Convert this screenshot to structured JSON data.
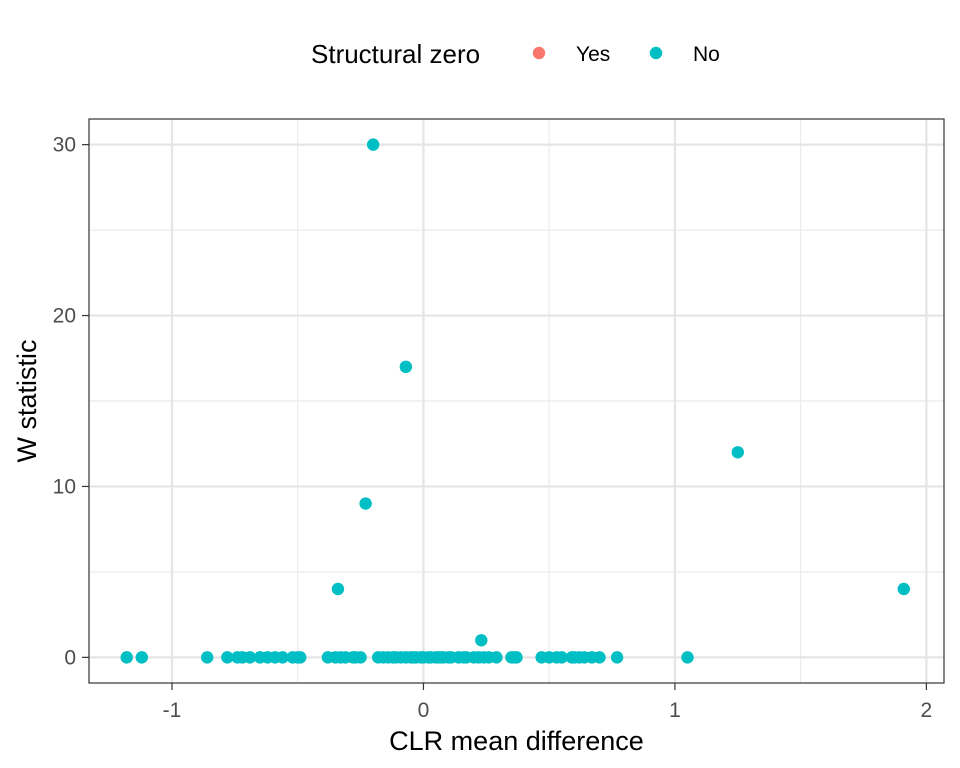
{
  "chart_data": {
    "type": "scatter",
    "xlabel": "CLR mean difference",
    "ylabel": "W statistic",
    "xlim": [
      -1.33,
      2.07
    ],
    "ylim": [
      -1.5,
      31.5
    ],
    "xticks": [
      -1,
      0,
      1,
      2
    ],
    "xtick_labels": [
      "-1",
      "0",
      "1",
      "2"
    ],
    "yticks": [
      0,
      10,
      20,
      30
    ],
    "ytick_labels": [
      "0",
      "10",
      "20",
      "30"
    ],
    "grid": true,
    "legend": {
      "title": "Structural zero",
      "position": "top",
      "entries": [
        {
          "label": "Yes",
          "color": "#F8766D"
        },
        {
          "label": "No",
          "color": "#00BFC4"
        }
      ]
    },
    "series": [
      {
        "name": "Yes",
        "color": "#F8766D",
        "points": []
      },
      {
        "name": "No",
        "color": "#00BFC4",
        "points": [
          [
            -1.18,
            0
          ],
          [
            -1.12,
            0
          ],
          [
            -0.86,
            0
          ],
          [
            -0.78,
            0
          ],
          [
            -0.74,
            0
          ],
          [
            -0.72,
            0
          ],
          [
            -0.69,
            0
          ],
          [
            -0.65,
            0
          ],
          [
            -0.62,
            0
          ],
          [
            -0.59,
            0
          ],
          [
            -0.56,
            0
          ],
          [
            -0.52,
            0
          ],
          [
            -0.5,
            0
          ],
          [
            -0.49,
            0
          ],
          [
            -0.38,
            0
          ],
          [
            -0.35,
            0
          ],
          [
            -0.33,
            0
          ],
          [
            -0.31,
            0
          ],
          [
            -0.28,
            0
          ],
          [
            -0.27,
            0
          ],
          [
            -0.25,
            0
          ],
          [
            -0.18,
            0
          ],
          [
            -0.16,
            0
          ],
          [
            -0.14,
            0
          ],
          [
            -0.12,
            0
          ],
          [
            -0.11,
            0
          ],
          [
            -0.09,
            0
          ],
          [
            -0.07,
            0
          ],
          [
            -0.05,
            0
          ],
          [
            -0.04,
            0
          ],
          [
            -0.03,
            0
          ],
          [
            -0.01,
            0
          ],
          [
            0.0,
            0
          ],
          [
            0.02,
            0
          ],
          [
            0.03,
            0
          ],
          [
            0.05,
            0
          ],
          [
            0.06,
            0
          ],
          [
            0.07,
            0
          ],
          [
            0.08,
            0
          ],
          [
            0.1,
            0
          ],
          [
            0.11,
            0
          ],
          [
            0.14,
            0
          ],
          [
            0.16,
            0
          ],
          [
            0.17,
            0
          ],
          [
            0.2,
            0
          ],
          [
            0.22,
            0
          ],
          [
            0.24,
            0
          ],
          [
            0.26,
            0
          ],
          [
            0.29,
            0
          ],
          [
            0.35,
            0
          ],
          [
            0.36,
            0
          ],
          [
            0.37,
            0
          ],
          [
            0.47,
            0
          ],
          [
            0.5,
            0
          ],
          [
            0.53,
            0
          ],
          [
            0.55,
            0
          ],
          [
            0.59,
            0
          ],
          [
            0.6,
            0
          ],
          [
            0.62,
            0
          ],
          [
            0.64,
            0
          ],
          [
            0.67,
            0
          ],
          [
            0.7,
            0
          ],
          [
            0.77,
            0
          ],
          [
            1.05,
            0
          ],
          [
            0.23,
            1
          ],
          [
            -0.34,
            4
          ],
          [
            1.91,
            4
          ],
          [
            -0.23,
            9
          ],
          [
            1.25,
            12
          ],
          [
            -0.07,
            17
          ],
          [
            -0.2,
            30
          ]
        ]
      }
    ]
  }
}
